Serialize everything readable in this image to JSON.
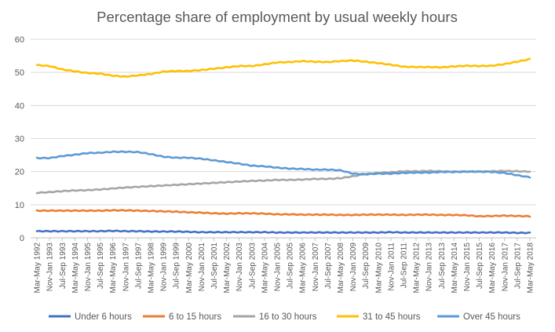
{
  "chart_data": {
    "type": "line",
    "title": "Percentage share of employment by usual weekly hours",
    "xlabel": "",
    "ylabel": "",
    "ylim": [
      0,
      60
    ],
    "yticks": [
      0,
      10,
      20,
      30,
      40,
      50,
      60
    ],
    "grid": true,
    "legend_position": "bottom",
    "x": [
      "Mar-May 1992",
      "Nov-Jan 1993",
      "Jul-Sep 1993",
      "Mar-May 1994",
      "Nov-Jan 1995",
      "Jul-Sep 1995",
      "Mar-May 1996",
      "Nov-Jan 1997",
      "Jul-Sep 1997",
      "Mar-May 1998",
      "Nov-Jan 1999",
      "Jul-Sep 1999",
      "Mar-May 2000",
      "Nov-Jan 2001",
      "Jul-Sep 2001",
      "Mar-May 2002",
      "Nov-Jan 2003",
      "Jul-Sep 2003",
      "Mar-May 2004",
      "Nov-Jan 2005",
      "Jul-Sep 2005",
      "Mar-May 2006",
      "Nov-Jan 2007",
      "Jul-Sep 2007",
      "Mar-May 2008",
      "Nov-Jan 2009",
      "Jul-Sep 2009",
      "Mar-May 2010",
      "Nov-Jan 2011",
      "Jul-Sep 2011",
      "Mar-May 2012",
      "Nov-Jan 2013",
      "Jul-Sep 2013",
      "Mar-May 2014",
      "Nov-Jan 2015",
      "Jul-Sep 2015",
      "Mar-May 2016",
      "Nov-Jan 2017",
      "Jul-Sep 2017",
      "Mar-May 2018"
    ],
    "series": [
      {
        "name": "Under 6 hours",
        "color": "#4472C4",
        "values": [
          2.0,
          2.0,
          2.0,
          2.0,
          2.0,
          2.0,
          2.1,
          2.0,
          2.0,
          1.9,
          1.9,
          1.9,
          1.8,
          1.7,
          1.7,
          1.7,
          1.7,
          1.7,
          1.7,
          1.6,
          1.6,
          1.6,
          1.6,
          1.6,
          1.6,
          1.6,
          1.6,
          1.6,
          1.7,
          1.6,
          1.6,
          1.6,
          1.6,
          1.6,
          1.6,
          1.6,
          1.6,
          1.6,
          1.5,
          1.5
        ]
      },
      {
        "name": "6 to 15 hours",
        "color": "#ED7D31",
        "values": [
          8.2,
          8.2,
          8.2,
          8.2,
          8.2,
          8.2,
          8.3,
          8.3,
          8.2,
          8.1,
          8.0,
          7.9,
          7.7,
          7.6,
          7.4,
          7.3,
          7.4,
          7.4,
          7.3,
          7.1,
          7.1,
          7.0,
          7.0,
          7.0,
          6.9,
          6.9,
          7.0,
          7.0,
          7.0,
          6.9,
          7.0,
          7.0,
          6.9,
          6.9,
          6.8,
          6.5,
          6.6,
          6.7,
          6.6,
          6.5
        ]
      },
      {
        "name": "16 to 30 hours",
        "color": "#A5A5A5",
        "values": [
          13.6,
          13.8,
          14.1,
          14.3,
          14.4,
          14.6,
          14.9,
          15.2,
          15.4,
          15.6,
          15.8,
          16.0,
          16.2,
          16.4,
          16.6,
          16.8,
          17.0,
          17.2,
          17.3,
          17.5,
          17.5,
          17.6,
          17.8,
          17.8,
          18.0,
          18.6,
          19.3,
          19.6,
          19.8,
          20.1,
          20.1,
          20.2,
          20.1,
          20.0,
          20.0,
          20.0,
          20.1,
          20.2,
          20.1,
          20.0
        ]
      },
      {
        "name": "31 to 45 hours",
        "color": "#FFC000",
        "values": [
          52.2,
          51.9,
          50.9,
          50.3,
          49.8,
          49.6,
          49.0,
          48.7,
          49.1,
          49.5,
          50.2,
          50.4,
          50.4,
          50.7,
          51.1,
          51.5,
          51.9,
          51.9,
          52.4,
          53.0,
          53.1,
          53.4,
          53.2,
          53.1,
          53.4,
          53.6,
          53.2,
          52.8,
          52.3,
          51.7,
          51.6,
          51.6,
          51.5,
          51.8,
          52.0,
          51.9,
          52.0,
          52.5,
          53.2,
          54.0
        ]
      },
      {
        "name": "Over 45 hours",
        "color": "#5B9BD5",
        "values": [
          24.1,
          24.1,
          24.7,
          25.1,
          25.6,
          25.7,
          26.0,
          26.0,
          25.9,
          25.3,
          24.5,
          24.2,
          24.2,
          23.9,
          23.4,
          22.9,
          22.4,
          21.8,
          21.6,
          21.2,
          20.9,
          20.8,
          20.6,
          20.6,
          20.4,
          19.4,
          19.2,
          19.4,
          19.4,
          19.6,
          19.7,
          19.7,
          19.9,
          19.9,
          20.0,
          20.0,
          19.9,
          19.6,
          18.9,
          18.3
        ]
      }
    ]
  }
}
